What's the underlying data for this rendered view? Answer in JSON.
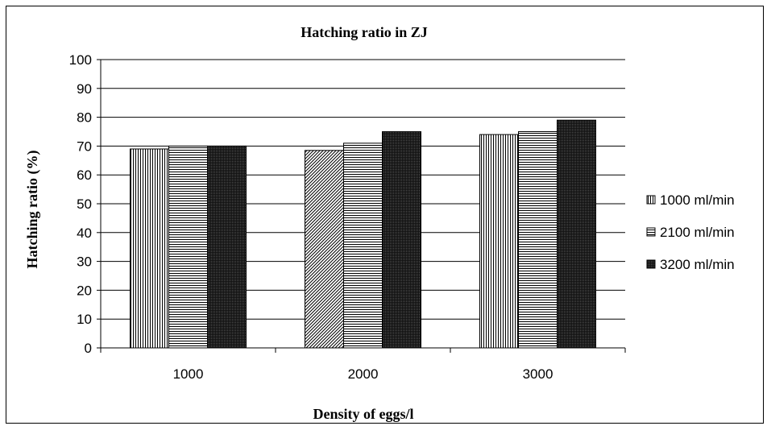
{
  "chart_data": {
    "type": "bar",
    "title": "Hatching ratio in ZJ",
    "xlabel": "Density of eggs/l",
    "ylabel": "Hatching ratio (%)",
    "ylim": [
      0,
      100
    ],
    "yticks": [
      "0",
      "10",
      "20",
      "30",
      "40",
      "50",
      "60",
      "70",
      "80",
      "90",
      "100"
    ],
    "categories": [
      "1000",
      "2000",
      "3000"
    ],
    "series": [
      {
        "name": "1000 ml/min",
        "values": [
          69,
          68.5,
          74
        ]
      },
      {
        "name": "2100 ml/min",
        "values": [
          70,
          71,
          75
        ]
      },
      {
        "name": "3200 ml/min",
        "values": [
          70,
          75,
          79
        ]
      }
    ],
    "grid": true,
    "legend": "right"
  }
}
